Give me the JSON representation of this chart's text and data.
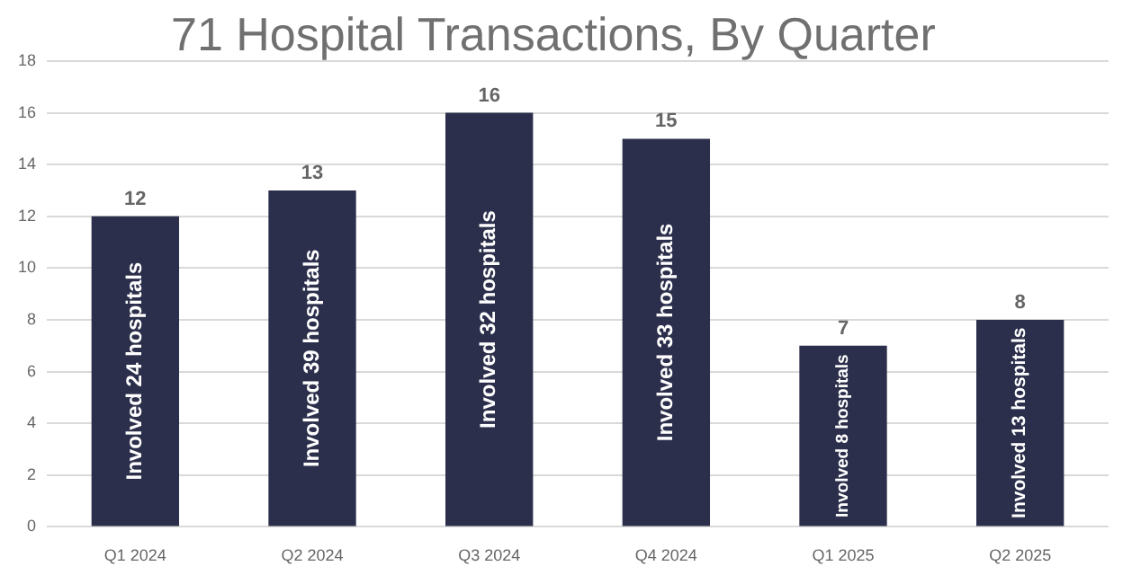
{
  "chart_data": {
    "type": "bar",
    "title": "71 Hospital Transactions, By Quarter",
    "categories": [
      "Q1 2024",
      "Q2 2024",
      "Q3 2024",
      "Q4 2024",
      "Q1 2025",
      "Q2 2025"
    ],
    "values": [
      12,
      13,
      16,
      15,
      7,
      8
    ],
    "color": "#2b2f4b",
    "ylim": [
      0,
      18
    ],
    "yticks": [
      0,
      2,
      4,
      6,
      8,
      10,
      12,
      14,
      16,
      18
    ],
    "grid": "y",
    "legend": false,
    "data_labels": true,
    "annotations": [
      "Involved 24 hospitals",
      "Involved 39 hospitals",
      "Involved 32 hospitals",
      "Involved 33 hospitals",
      "Involved 8 hospitals",
      "Involved 13 hospitals"
    ]
  }
}
